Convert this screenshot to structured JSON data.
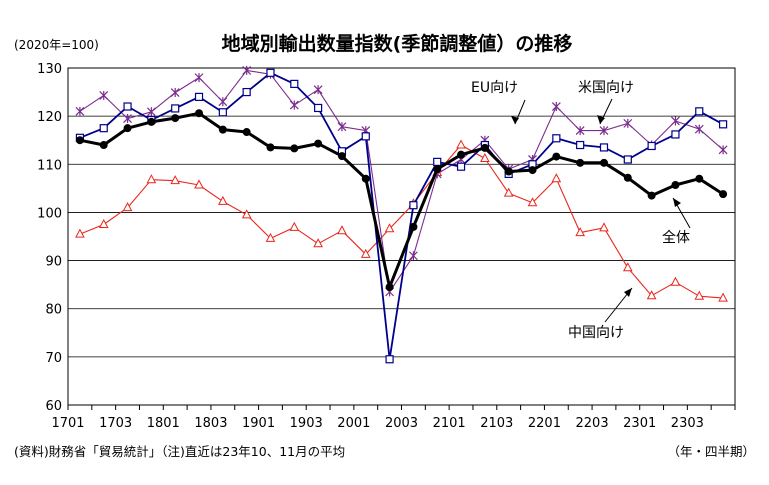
{
  "chart_data": {
    "type": "line",
    "title": "地域別輸出数量指数(季節調整値）の推移",
    "unit_label": "(2020年=100)",
    "x_axis_label": "（年・四半期）",
    "source_note": "(資料)財務省「貿易統計」（注)直近は23年10、11月の平均",
    "categories": [
      "1701",
      "1702",
      "1703",
      "1704",
      "1801",
      "1802",
      "1803",
      "1804",
      "1901",
      "1902",
      "1903",
      "1904",
      "2001",
      "2002",
      "2003",
      "2004",
      "2101",
      "2102",
      "2103",
      "2104",
      "2201",
      "2202",
      "2203",
      "2204",
      "2301",
      "2302",
      "2303",
      "2304"
    ],
    "x_tick_labels": [
      "1701",
      "1703",
      "1801",
      "1803",
      "1901",
      "1903",
      "2001",
      "2003",
      "2101",
      "2103",
      "2201",
      "2203",
      "2301",
      "2303"
    ],
    "ylim": [
      60,
      130
    ],
    "y_ticks": [
      60,
      70,
      80,
      90,
      100,
      110,
      120,
      130
    ],
    "grid": "horizontal",
    "series": [
      {
        "name": "全体",
        "marker": "circle",
        "color": "#000000",
        "values": [
          115.0,
          114.0,
          117.5,
          118.8,
          119.6,
          120.6,
          117.2,
          116.7,
          113.5,
          113.3,
          114.3,
          111.7,
          107.0,
          84.5,
          97.0,
          109.0,
          112.0,
          113.4,
          108.5,
          108.8,
          111.6,
          110.3,
          110.3,
          107.2,
          103.5,
          105.7,
          107.0,
          103.8
        ]
      },
      {
        "name": "EU向け",
        "marker": "square",
        "color": "#00008b",
        "values": [
          115.5,
          117.5,
          122.0,
          119.2,
          121.6,
          124.0,
          120.8,
          125.0,
          129.0,
          126.7,
          121.7,
          112.7,
          115.8,
          69.5,
          101.5,
          110.5,
          109.5,
          114.0,
          108.0,
          110.0,
          115.4,
          114.0,
          113.5,
          111.0,
          113.8,
          116.2,
          121.0,
          118.3
        ]
      },
      {
        "name": "米国向け",
        "marker": "star",
        "color": "#7b2d8e",
        "values": [
          121.0,
          124.3,
          119.5,
          120.9,
          124.9,
          128.0,
          123.0,
          129.5,
          128.7,
          122.3,
          125.5,
          117.8,
          117.0,
          83.5,
          91.0,
          108.0,
          111.0,
          115.0,
          109.0,
          111.0,
          122.0,
          117.0,
          117.0,
          118.5,
          114.0,
          119.0,
          117.3,
          113.0
        ]
      },
      {
        "name": "中国向け",
        "marker": "triangle",
        "color": "#e8271c",
        "values": [
          95.5,
          97.5,
          101.0,
          106.8,
          106.6,
          105.7,
          102.3,
          99.5,
          94.6,
          96.9,
          93.5,
          96.2,
          91.3,
          96.6,
          101.8,
          108.3,
          114.0,
          111.2,
          104.0,
          102.0,
          107.0,
          95.8,
          96.8,
          88.5,
          82.7,
          85.5,
          82.6,
          82.2
        ]
      }
    ],
    "annotations": [
      {
        "text": "EU向け",
        "series": "EU向け"
      },
      {
        "text": "米国向け",
        "series": "米国向け"
      },
      {
        "text": "全体",
        "series": "全体"
      },
      {
        "text": "中国向け",
        "series": "中国向け"
      }
    ]
  }
}
